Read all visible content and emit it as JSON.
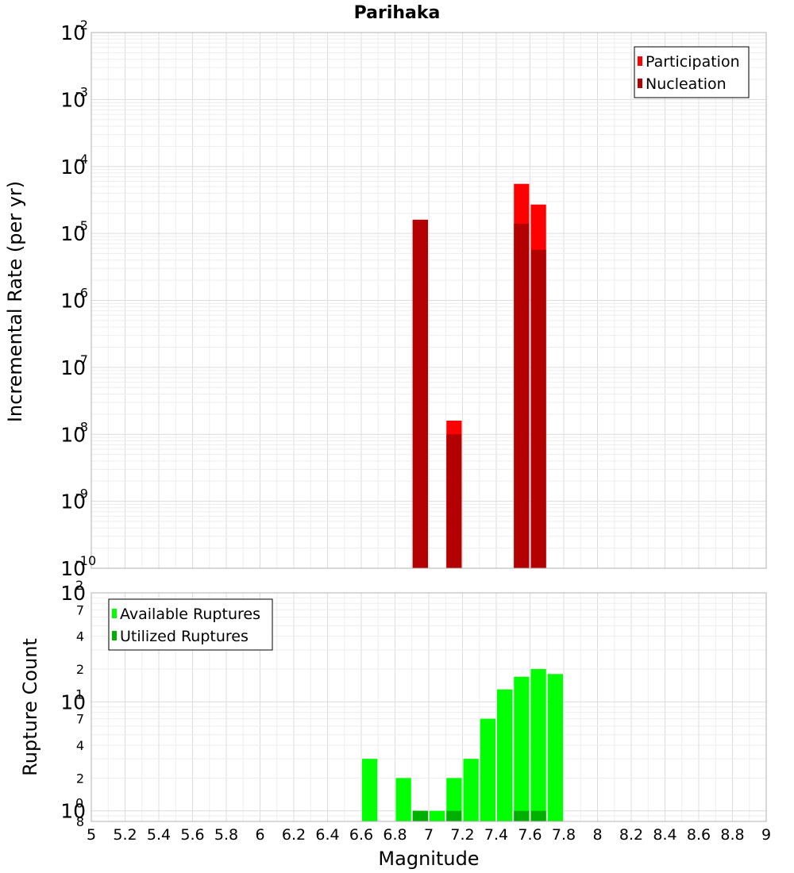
{
  "chart_data": [
    {
      "type": "bar",
      "title": "Parihaka",
      "xlabel": "",
      "ylabel": "Incremental Rate (per yr)",
      "xlim": [
        5,
        9
      ],
      "ylim": [
        1e-10,
        0.01
      ],
      "y_scale": "log",
      "x_ticks": [
        "5",
        "5.2",
        "5.4",
        "5.6",
        "5.8",
        "6",
        "6.2",
        "6.4",
        "6.6",
        "6.8",
        "7",
        "7.2",
        "7.4",
        "7.6",
        "7.8",
        "8",
        "8.2",
        "8.4",
        "8.6",
        "8.8",
        "9"
      ],
      "y_ticks": [
        {
          "base": "10",
          "exp": "-2",
          "value": 0.01
        },
        {
          "base": "10",
          "exp": "-3",
          "value": 0.001
        },
        {
          "base": "10",
          "exp": "-4",
          "value": 0.0001
        },
        {
          "base": "10",
          "exp": "-5",
          "value": 1e-05
        },
        {
          "base": "10",
          "exp": "-6",
          "value": 1e-06
        },
        {
          "base": "10",
          "exp": "-7",
          "value": 1e-07
        },
        {
          "base": "10",
          "exp": "-8",
          "value": 1e-08
        },
        {
          "base": "10",
          "exp": "-9",
          "value": 1e-09
        },
        {
          "base": "10",
          "exp": "-10",
          "value": 1e-10
        }
      ],
      "legend_placement": "top-right",
      "series": [
        {
          "name": "Participation",
          "color": "#ff0000",
          "x": [
            6.95,
            7.15,
            7.55,
            7.65
          ],
          "values": [
            1.6e-05,
            1.6e-08,
            5.5e-05,
            2.7e-05
          ]
        },
        {
          "name": "Nucleation",
          "color": "#b30000",
          "x": [
            6.95,
            7.15,
            7.55,
            7.65
          ],
          "values": [
            1.6e-05,
            1e-08,
            1.4e-05,
            5.7e-06
          ]
        }
      ]
    },
    {
      "type": "bar",
      "title": "",
      "xlabel": "Magnitude",
      "ylabel": "Rupture Count",
      "xlim": [
        5,
        9
      ],
      "ylim": [
        0.8,
        100
      ],
      "y_scale": "log",
      "x_ticks": [
        "5",
        "5.2",
        "5.4",
        "5.6",
        "5.8",
        "6",
        "6.2",
        "6.4",
        "6.6",
        "6.8",
        "7",
        "7.2",
        "7.4",
        "7.6",
        "7.8",
        "8",
        "8.2",
        "8.4",
        "8.6",
        "8.8",
        "9"
      ],
      "y_major_ticks": [
        {
          "base": "10",
          "exp": "2",
          "value": 100
        },
        {
          "base": "10",
          "exp": "1",
          "value": 10
        },
        {
          "base": "10",
          "exp": "0",
          "value": 1
        }
      ],
      "y_minor_ticks": [
        {
          "label": "7",
          "value": 70
        },
        {
          "label": "4",
          "value": 40
        },
        {
          "label": "2",
          "value": 20
        },
        {
          "label": "7",
          "value": 7
        },
        {
          "label": "4",
          "value": 4
        },
        {
          "label": "2",
          "value": 2
        },
        {
          "label": "8",
          "value": 0.8
        }
      ],
      "legend_placement": "top-left",
      "series": [
        {
          "name": "Available Ruptures",
          "color": "#00ff00",
          "x": [
            6.65,
            6.85,
            6.95,
            7.05,
            7.15,
            7.25,
            7.35,
            7.45,
            7.55,
            7.65,
            7.75
          ],
          "values": [
            3,
            2,
            1,
            1,
            2,
            3,
            7,
            13,
            17,
            20,
            18
          ]
        },
        {
          "name": "Utilized Ruptures",
          "color": "#00b000",
          "x": [
            6.95,
            7.15,
            7.55,
            7.65
          ],
          "values": [
            1,
            1,
            1,
            1
          ]
        }
      ]
    }
  ]
}
